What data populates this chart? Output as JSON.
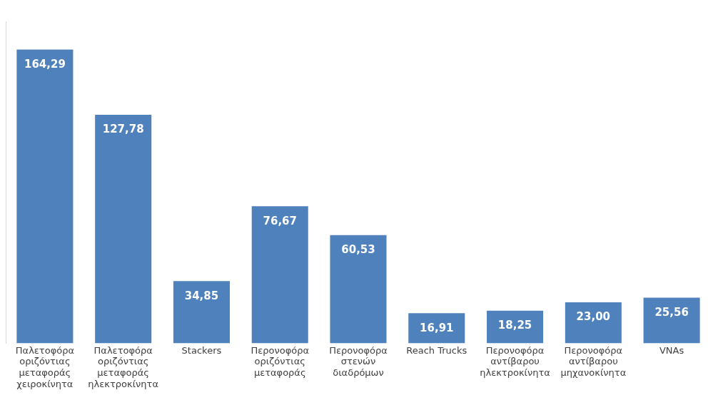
{
  "chart_data": {
    "type": "bar",
    "categories": [
      "Παλετοφόρα οριζόντιας μεταφοράς χειροκίνητα",
      "Παλετοφόρα οριζόντιας μεταφοράς ηλεκτροκίνητα",
      "Stackers",
      "Περονοφόρα οριζόντιας μεταφοράς",
      "Περονοφόρα στενών διαδρόμων",
      "Reach Trucks",
      "Περονοφόρα αντίβαρου ηλεκτροκίνητα",
      "Περονοφόρα αντίβαρου μηχανοκίνητα",
      "VNAs"
    ],
    "values": [
      164.29,
      127.78,
      34.85,
      76.67,
      60.53,
      16.91,
      18.25,
      23.0,
      25.56
    ],
    "value_labels": [
      "164,29",
      "127,78",
      "34,85",
      "76,67",
      "60,53",
      "16,91",
      "18,25",
      "23,00",
      "25,56"
    ],
    "color": "#4f81bd",
    "grid": false,
    "legend": false
  }
}
